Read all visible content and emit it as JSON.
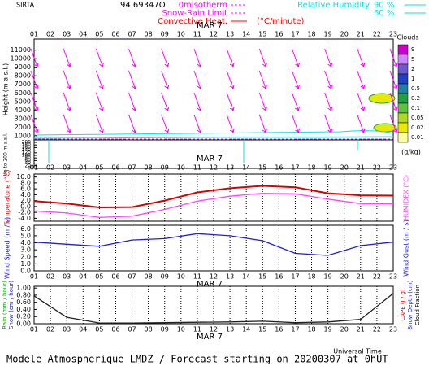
{
  "header": {
    "station": "SIRTA",
    "coord": "94.69347O",
    "legend": [
      {
        "label": "0misotherm",
        "color": "#ff00ff"
      },
      {
        "label": "Snow-Rain Limit",
        "color": "#ff00ff"
      },
      {
        "label": "Convective Heat.",
        "color": "#ff0000"
      }
    ],
    "unit": "(°C/minute)",
    "rh_title": "Relative Humidity",
    "rh_levels": [
      "90 %",
      "60 %"
    ],
    "rh_color": "#00e5e5"
  },
  "time": {
    "xlim": [
      1,
      23
    ],
    "xticks": [
      {
        "value": 1,
        "label": "01"
      },
      {
        "value": 2,
        "label": "02"
      },
      {
        "value": 3,
        "label": "03"
      },
      {
        "value": 4,
        "label": "04"
      },
      {
        "value": 5,
        "label": "05"
      },
      {
        "value": 6,
        "label": "06"
      },
      {
        "value": 7,
        "label": "07"
      },
      {
        "value": 8,
        "label": "08"
      },
      {
        "value": 9,
        "label": "09"
      },
      {
        "value": 10,
        "label": "10"
      },
      {
        "value": 11,
        "label": "11"
      },
      {
        "value": 12,
        "label": "12"
      },
      {
        "value": 13,
        "label": "13"
      },
      {
        "value": 14,
        "label": "14"
      },
      {
        "value": 15,
        "label": "15"
      },
      {
        "value": 16,
        "label": "16"
      },
      {
        "value": 17,
        "label": "17"
      },
      {
        "value": 18,
        "label": "18"
      },
      {
        "value": 19,
        "label": "19"
      },
      {
        "value": 20,
        "label": "20"
      },
      {
        "value": 21,
        "label": "21"
      },
      {
        "value": 22,
        "label": "22"
      },
      {
        "value": 23,
        "label": "23"
      }
    ],
    "date": "MAR  7",
    "xlabel": "Universal Time"
  },
  "chart_data": [
    {
      "type": "height",
      "ylabel": "Height (m a.s.l.)",
      "ylim": [
        700,
        12300
      ],
      "yticks": [
        1000,
        2000,
        3000,
        4000,
        5000,
        6000,
        7000,
        8000,
        9000,
        10000,
        11000
      ],
      "low_ylabel": "Up to 200 m a.s.l.",
      "low_ylim": [
        0,
        200
      ],
      "low_yticks": [
        0,
        20,
        40,
        60,
        80,
        100,
        120,
        140,
        160,
        180,
        200
      ],
      "colorbar": {
        "title": "Clouds",
        "unit": "(g/kg)",
        "levels": [
          9,
          5,
          2,
          1,
          0.5,
          0.2,
          0.1,
          0.05,
          0.02,
          0.01
        ],
        "colors": [
          "#cc00cc",
          "#cc88ff",
          "#6a5acd",
          "#2040c0",
          "#2080a0",
          "#20a040",
          "#60c040",
          "#b0d820",
          "#e8e800",
          "#ffffa0"
        ]
      }
    },
    {
      "type": "line",
      "ylabel": "Temperature (°C)",
      "y2label": "HUMIDEX (°C)",
      "ylim": [
        -5,
        11
      ],
      "yticks": [
        {
          "value": -4,
          "label": "-4.0"
        },
        {
          "value": -2,
          "label": "-2.0"
        },
        {
          "value": 0,
          "label": "0.0"
        },
        {
          "value": 2,
          "label": "2.0"
        },
        {
          "value": 4,
          "label": "4.0"
        },
        {
          "value": 6,
          "label": "6.0"
        },
        {
          "value": 8,
          "label": "8.0"
        },
        {
          "value": 10,
          "label": "10.0"
        }
      ],
      "grid": true,
      "x": [
        1,
        3,
        5,
        7,
        9,
        11,
        13,
        15,
        17,
        19,
        21,
        23
      ],
      "series": [
        {
          "name": "Temperature",
          "color": "#dd0000",
          "values": [
            1.8,
            1.0,
            -0.3,
            -0.2,
            2.0,
            4.8,
            6.2,
            7.0,
            6.5,
            4.5,
            3.8,
            3.7
          ]
        },
        {
          "name": "HUMIDEX",
          "color": "#ff44ff",
          "values": [
            -1.5,
            -2.2,
            -3.7,
            -3.3,
            -1.0,
            1.8,
            3.5,
            4.5,
            4.3,
            2.5,
            1.0,
            1.0
          ]
        }
      ]
    },
    {
      "type": "line",
      "ylabel": "Wind Speed (m / s)",
      "y2label": "Wind Gust (m / s)",
      "ylim": [
        0,
        6.5
      ],
      "yticks": [
        {
          "value": 0,
          "label": "0.0"
        },
        {
          "value": 1,
          "label": "1.0"
        },
        {
          "value": 2,
          "label": "2.0"
        },
        {
          "value": 3,
          "label": "3.0"
        },
        {
          "value": 4,
          "label": "4.0"
        },
        {
          "value": 5,
          "label": "5.0"
        },
        {
          "value": 6,
          "label": "6.0"
        }
      ],
      "grid": true,
      "x": [
        1,
        3,
        5,
        7,
        9,
        11,
        13,
        15,
        17,
        19,
        21,
        23
      ],
      "series": [
        {
          "name": "Wind Speed",
          "color": "#2020cc",
          "values": [
            4.1,
            3.8,
            3.5,
            4.4,
            4.6,
            5.3,
            5.0,
            4.3,
            2.5,
            2.2,
            3.6,
            4.1
          ]
        }
      ]
    },
    {
      "type": "line",
      "ylabels": [
        {
          "label": "Rain (mm / hour)",
          "color": "#00aa00"
        },
        {
          "label": "Snow (cm / hour)",
          "color": "#2020cc"
        }
      ],
      "y2labels": [
        {
          "label": "CAPE (J / g)",
          "color": "#dd0000"
        },
        {
          "label": "Snow Depth (cm)",
          "color": "#2020cc"
        },
        {
          "label": "Cloud Fraction",
          "color": "#000000"
        }
      ],
      "ylim": [
        0,
        1.05
      ],
      "yticks": [
        {
          "value": 0,
          "label": "0.00"
        },
        {
          "value": 0.2,
          "label": "0.20"
        },
        {
          "value": 0.4,
          "label": "0.40"
        },
        {
          "value": 0.6,
          "label": "0.60"
        },
        {
          "value": 0.8,
          "label": "0.80"
        },
        {
          "value": 1,
          "label": "1.00"
        }
      ],
      "grid": true,
      "x": [
        1,
        3,
        5,
        7,
        9,
        11,
        13,
        15,
        17,
        19,
        21,
        23
      ],
      "series": [
        {
          "name": "Cloud Fraction",
          "color": "#222222",
          "values": [
            0.78,
            0.18,
            0.02,
            0.02,
            0.03,
            0.04,
            0.05,
            0.07,
            0.03,
            0.05,
            0.12,
            0.85
          ]
        }
      ]
    }
  ],
  "footer": "Modele Atmospherique LMDZ / Forecast starting on 20200307 at 0hUT"
}
